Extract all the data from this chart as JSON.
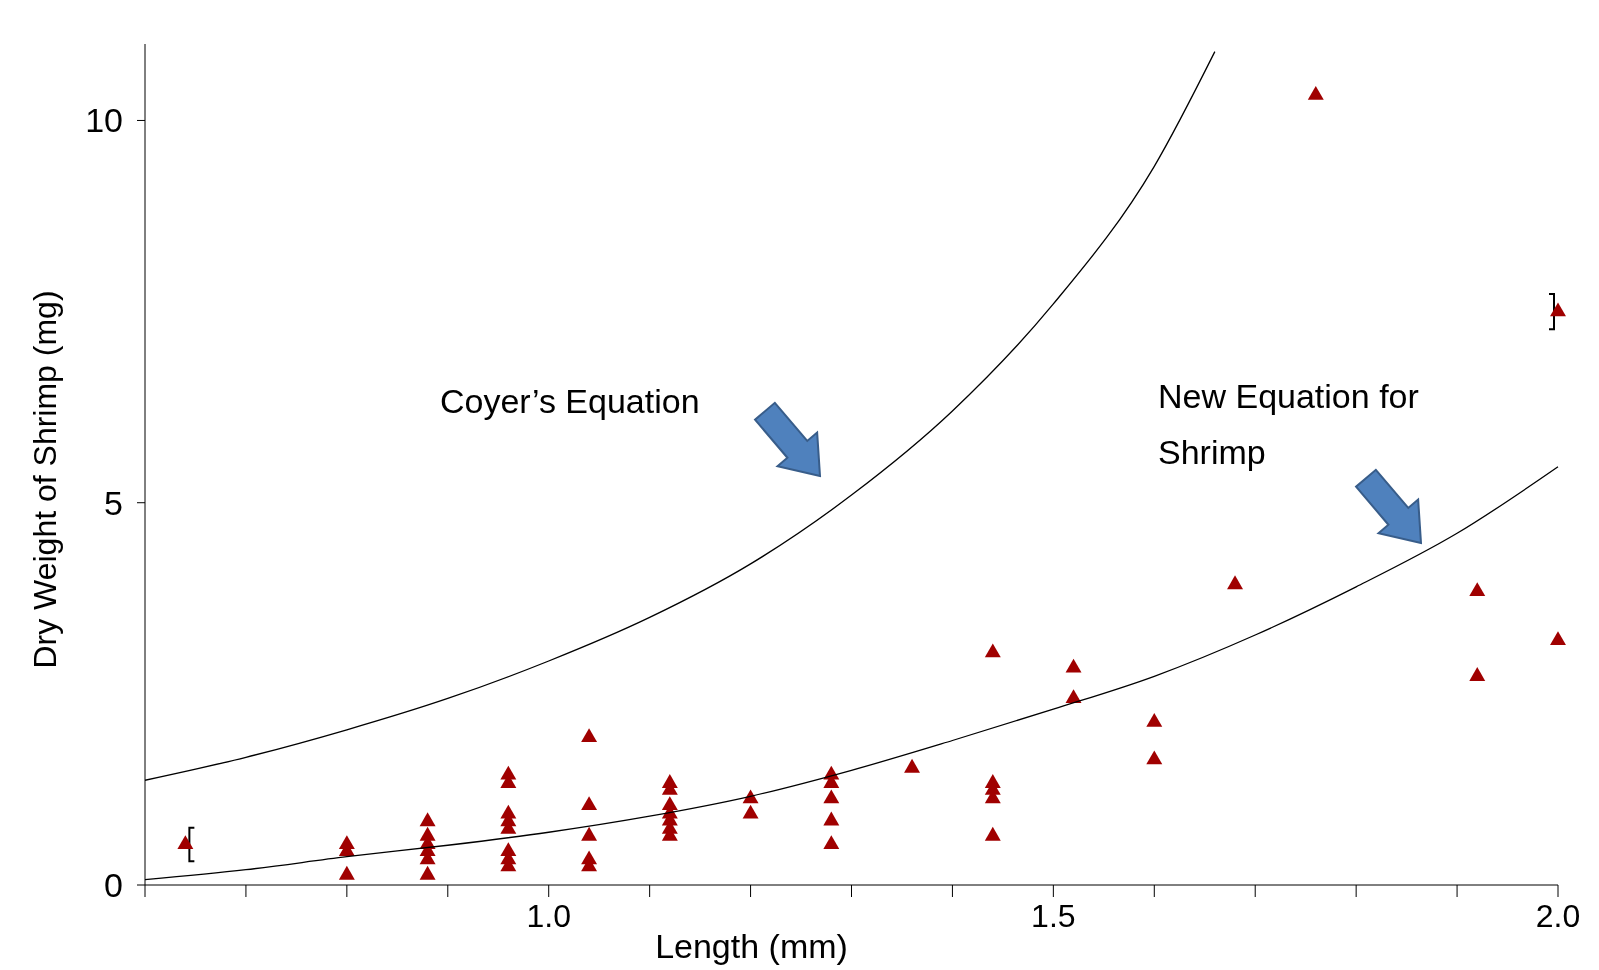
{
  "chart_data": {
    "type": "scatter",
    "xlabel": "Length (mm)",
    "ylabel": "Dry Weight of Shrimp (mg)",
    "xlim": [
      0.6,
      2.0
    ],
    "ylim": [
      0,
      11
    ],
    "xticks": [
      {
        "value": 0.6,
        "label": null
      },
      {
        "value": 0.7,
        "label": null
      },
      {
        "value": 0.8,
        "label": null
      },
      {
        "value": 0.9,
        "label": null
      },
      {
        "value": 1.0,
        "label": "1.0"
      },
      {
        "value": 1.1,
        "label": null
      },
      {
        "value": 1.2,
        "label": null
      },
      {
        "value": 1.3,
        "label": null
      },
      {
        "value": 1.4,
        "label": null
      },
      {
        "value": 1.5,
        "label": "1.5"
      },
      {
        "value": 1.6,
        "label": null
      },
      {
        "value": 1.7,
        "label": null
      },
      {
        "value": 1.8,
        "label": null
      },
      {
        "value": 1.9,
        "label": null
      },
      {
        "value": 2.0,
        "label": "2.0"
      }
    ],
    "yticks": [
      0,
      5,
      10
    ],
    "grid": false,
    "marker": "triangle",
    "series": [
      {
        "color": "#a00000",
        "x": [
          0.64,
          0.8,
          0.8,
          0.8,
          0.88,
          0.88,
          0.88,
          0.88,
          0.88,
          0.88,
          0.96,
          0.96,
          0.96,
          0.96,
          0.96,
          0.96,
          0.96,
          0.96,
          1.04,
          1.04,
          1.04,
          1.04,
          1.04,
          1.12,
          1.12,
          1.12,
          1.12,
          1.12,
          1.12,
          1.12,
          1.2,
          1.2,
          1.28,
          1.28,
          1.28,
          1.28,
          1.28,
          1.36,
          1.44,
          1.44,
          1.44,
          1.44,
          1.44,
          1.52,
          1.52,
          1.6,
          1.6,
          1.68,
          1.76,
          1.92,
          1.92,
          2.0,
          2.0
        ],
        "values": [
          0.53,
          0.53,
          0.44,
          0.13,
          0.83,
          0.64,
          0.53,
          0.44,
          0.33,
          0.13,
          1.44,
          1.33,
          0.93,
          0.83,
          0.73,
          0.44,
          0.33,
          0.24,
          1.93,
          1.04,
          0.64,
          0.33,
          0.24,
          1.33,
          1.24,
          1.04,
          0.93,
          0.84,
          0.73,
          0.64,
          1.13,
          0.93,
          1.44,
          1.33,
          1.13,
          0.84,
          0.53,
          1.53,
          3.04,
          1.33,
          1.24,
          1.13,
          0.64,
          2.84,
          2.44,
          2.13,
          1.64,
          3.93,
          10.33,
          3.84,
          2.73,
          7.5,
          3.2
        ],
        "errors": [
          0.22,
          null,
          null,
          null,
          null,
          null,
          null,
          null,
          null,
          null,
          null,
          null,
          null,
          null,
          null,
          null,
          null,
          null,
          null,
          null,
          null,
          null,
          null,
          null,
          null,
          null,
          null,
          null,
          null,
          null,
          null,
          null,
          null,
          null,
          null,
          null,
          null,
          null,
          null,
          null,
          null,
          null,
          null,
          null,
          null,
          null,
          null,
          null,
          null,
          null,
          null,
          0.23,
          null
        ]
      },
      {
        "type": "line",
        "color": "#000000",
        "marker": "none",
        "line_style": "solid",
        "x": [
          0.6,
          0.7,
          0.8,
          0.9,
          1.0,
          1.1,
          1.2,
          1.3,
          1.4,
          1.5,
          1.6,
          1.66
        ],
        "values": [
          1.37,
          1.67,
          2.03,
          2.44,
          2.93,
          3.5,
          4.2,
          5.1,
          6.2,
          7.6,
          9.4,
          10.9
        ]
      },
      {
        "type": "line",
        "color": "#000000",
        "marker": "none",
        "line_style": "solid",
        "x": [
          0.6,
          0.7,
          0.8,
          0.9,
          1.0,
          1.1,
          1.2,
          1.3,
          1.4,
          1.5,
          1.6,
          1.7,
          1.8,
          1.9,
          2.0
        ],
        "values": [
          0.07,
          0.2,
          0.37,
          0.52,
          0.69,
          0.9,
          1.16,
          1.5,
          1.89,
          2.3,
          2.73,
          3.27,
          3.9,
          4.6,
          5.47
        ]
      }
    ],
    "annotations": [
      "Coyer’s Equation",
      "New Equation for\nShrimp"
    ]
  }
}
